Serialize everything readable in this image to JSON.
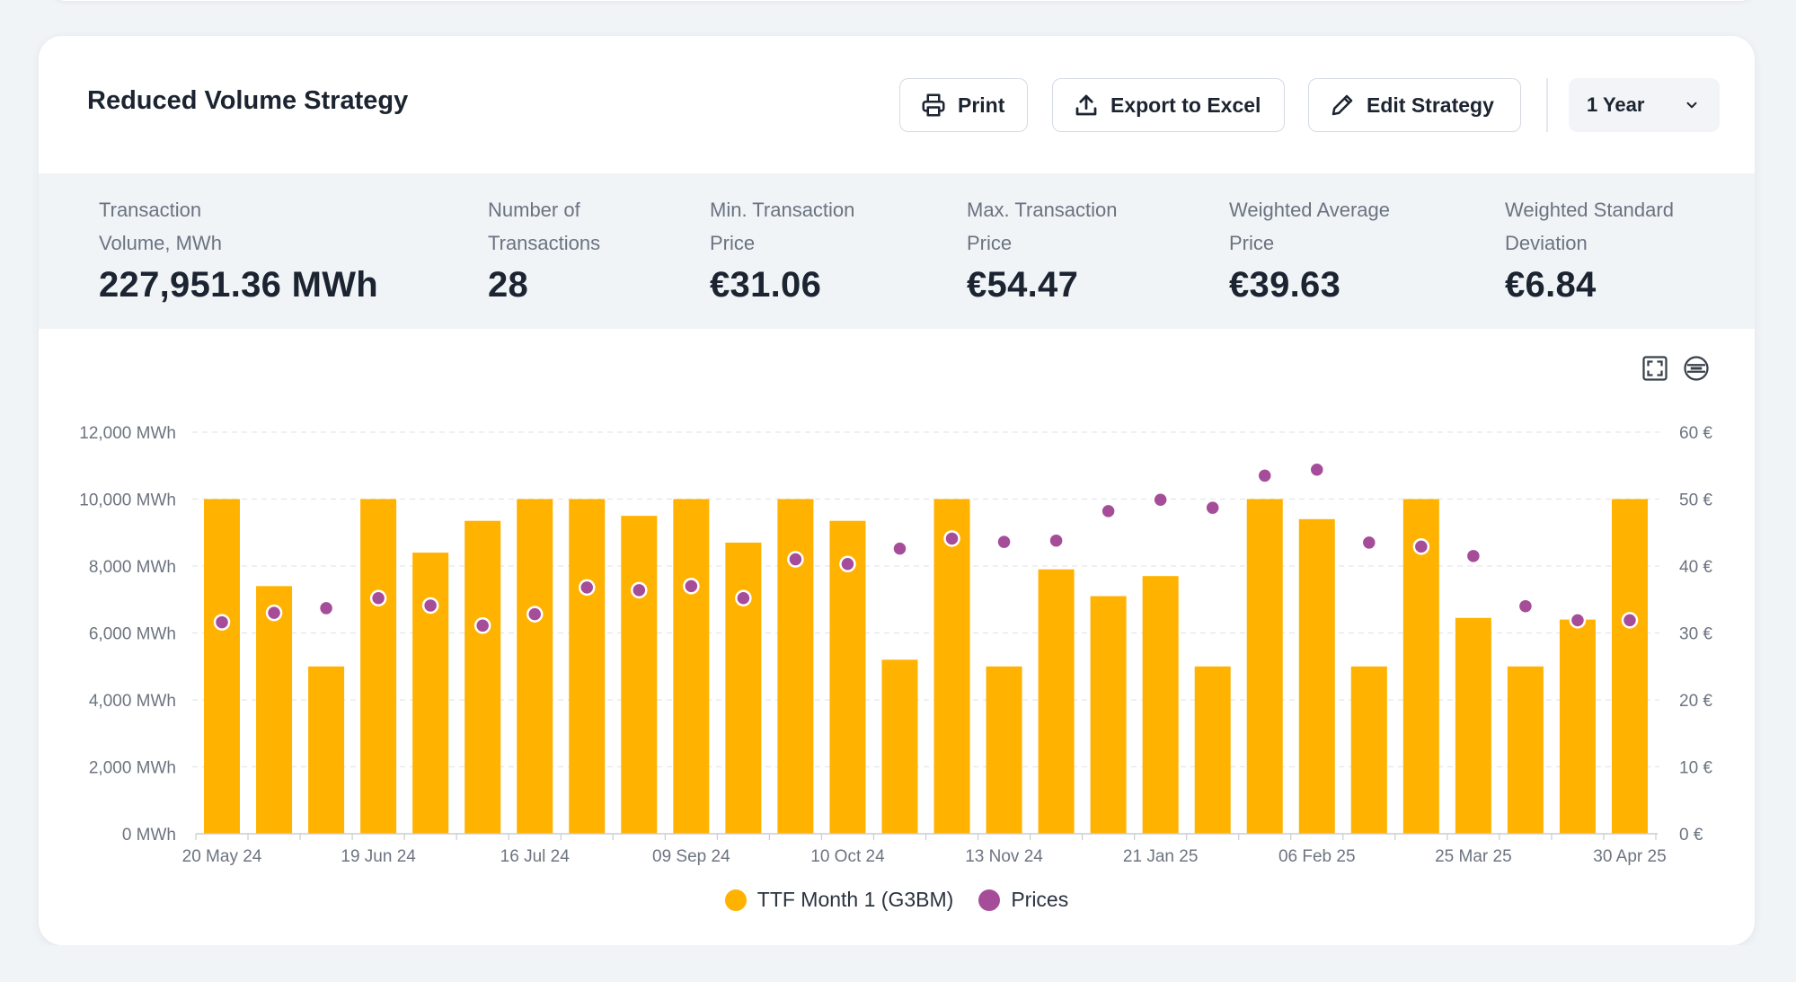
{
  "header": {
    "title": "Reduced Volume Strategy",
    "print_label": "Print",
    "export_label": "Export to Excel",
    "edit_label": "Edit Strategy",
    "period_selected": "1 Year"
  },
  "stats": [
    {
      "label_line1": "Transaction",
      "label_line2": "Volume, MWh",
      "value": "227,951.36 MWh"
    },
    {
      "label_line1": "Number of",
      "label_line2": "Transactions",
      "value": "28"
    },
    {
      "label_line1": "Min. Transaction",
      "label_line2": "Price",
      "value": "€31.06"
    },
    {
      "label_line1": "Max. Transaction",
      "label_line2": "Price",
      "value": "€54.47"
    },
    {
      "label_line1": "Weighted Average",
      "label_line2": "Price",
      "value": "€39.63"
    },
    {
      "label_line1": "Weighted Standard",
      "label_line2": "Deviation",
      "value": "€6.84"
    }
  ],
  "icons": {
    "fullscreen": "fullscreen-icon",
    "reset_zoom": "reset-zoom-icon",
    "print": "printer-icon",
    "export": "upload-icon",
    "edit": "pencil-icon",
    "chevron": "chevron-down-icon"
  },
  "colors": {
    "bar": "#ffb200",
    "price": "#a64d99",
    "accent_text": "#1c2431"
  },
  "legend": {
    "series1": "TTF Month 1 (G3BM)",
    "series2": "Prices"
  },
  "chart_data": {
    "type": "bar",
    "y_left_ticks": [
      "0 MWh",
      "2,000 MWh",
      "4,000 MWh",
      "6,000 MWh",
      "8,000 MWh",
      "10,000 MWh",
      "12,000 MWh"
    ],
    "y_right_ticks": [
      "0 €",
      "10 €",
      "20 €",
      "30 €",
      "40 €",
      "50 €",
      "60 €"
    ],
    "ylim_left": [
      0,
      12000
    ],
    "ylim_right": [
      0,
      60
    ],
    "x_tick_labels": [
      "20 May 24",
      "19 Jun 24",
      "16 Jul 24",
      "09 Sep 24",
      "10 Oct 24",
      "13 Nov 24",
      "21 Jan 25",
      "06 Feb 25",
      "25 Mar 25",
      "30 Apr 25"
    ],
    "x_tick_indices": [
      0,
      3,
      6,
      9,
      12,
      15,
      18,
      21,
      24,
      27
    ],
    "grid": true,
    "legend_position": "bottom-center",
    "series": [
      {
        "name": "TTF Month 1 (G3BM)",
        "type": "bar",
        "axis": "left",
        "values": [
          10000,
          7400,
          5000,
          10000,
          8400,
          9350,
          10000,
          10000,
          9500,
          10000,
          8700,
          10000,
          9350,
          5200,
          10000,
          5000,
          7900,
          7100,
          7700,
          5000,
          10000,
          9400,
          5000,
          10000,
          6450,
          5000,
          6400,
          10000
        ]
      },
      {
        "name": "Prices",
        "type": "scatter",
        "axis": "right",
        "values": [
          31.6,
          33.0,
          33.7,
          35.2,
          34.1,
          31.1,
          32.8,
          36.8,
          36.4,
          37.0,
          35.2,
          41.0,
          40.3,
          42.6,
          44.1,
          43.6,
          43.8,
          48.2,
          49.9,
          48.7,
          53.5,
          54.4,
          43.5,
          42.9,
          41.5,
          34.0,
          31.9,
          31.9
        ]
      }
    ]
  }
}
